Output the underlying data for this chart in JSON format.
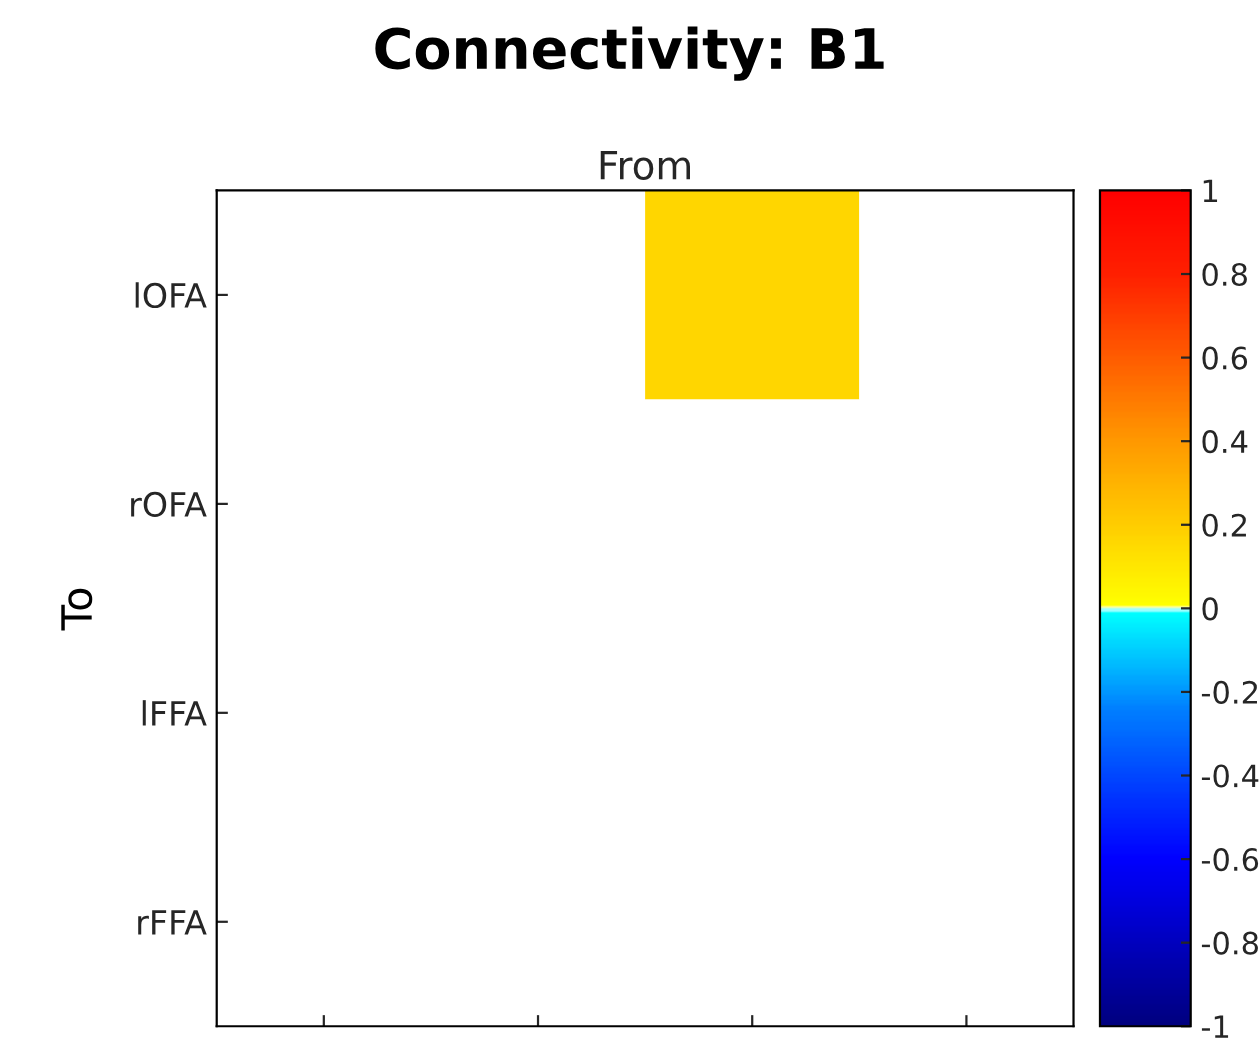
{
  "chart_data": {
    "type": "heatmap",
    "title": "Connectivity: B1",
    "xlabel": "From",
    "ylabel": "To",
    "categories": [
      null,
      null,
      null,
      null
    ],
    "y_categories": [
      "lOFA",
      "rOFA",
      "lFFA",
      "rFFA"
    ],
    "cells": [
      [
        null,
        null,
        0.17,
        null
      ],
      [
        null,
        null,
        null,
        null
      ],
      [
        null,
        null,
        null,
        null
      ],
      [
        null,
        null,
        null,
        null
      ]
    ],
    "clim": [
      -1,
      1
    ],
    "cticks": [
      -1,
      -0.8,
      -0.6,
      -0.4,
      -0.2,
      0,
      0.2,
      0.4,
      0.6,
      0.8,
      1
    ],
    "tick_labels": "y"
  }
}
